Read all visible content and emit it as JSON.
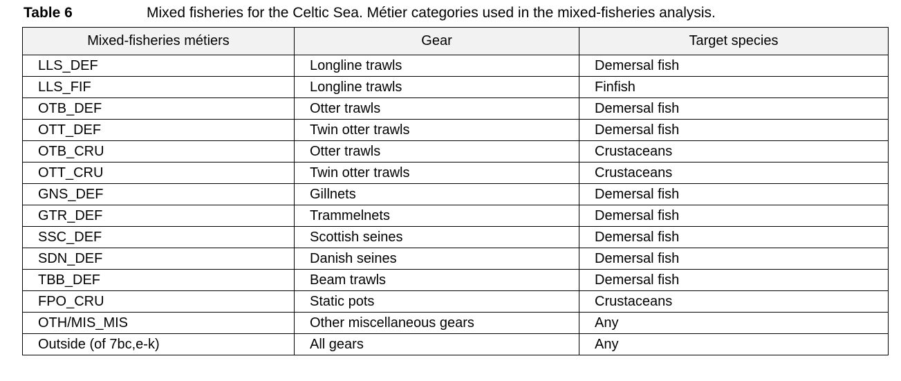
{
  "caption": {
    "label": "Table 6",
    "text": "Mixed fisheries for the Celtic Sea. Métier categories used in the mixed-fisheries analysis."
  },
  "table": {
    "headers": [
      "Mixed-fisheries métiers",
      "Gear",
      "Target species"
    ],
    "rows": [
      [
        "LLS_DEF",
        "Longline trawls",
        "Demersal fish"
      ],
      [
        "LLS_FIF",
        "Longline trawls",
        "Finfish"
      ],
      [
        "OTB_DEF",
        "Otter trawls",
        "Demersal fish"
      ],
      [
        "OTT_DEF",
        "Twin otter trawls",
        "Demersal fish"
      ],
      [
        "OTB_CRU",
        "Otter trawls",
        "Crustaceans"
      ],
      [
        "OTT_CRU",
        "Twin otter trawls",
        "Crustaceans"
      ],
      [
        "GNS_DEF",
        "Gillnets",
        "Demersal fish"
      ],
      [
        "GTR_DEF",
        "Trammelnets",
        "Demersal fish"
      ],
      [
        "SSC_DEF",
        "Scottish seines",
        "Demersal fish"
      ],
      [
        "SDN_DEF",
        "Danish seines",
        "Demersal fish"
      ],
      [
        "TBB_DEF",
        "Beam trawls",
        "Demersal fish"
      ],
      [
        "FPO_CRU",
        "Static pots",
        "Crustaceans"
      ],
      [
        "OTH/MIS_MIS",
        "Other miscellaneous gears",
        "Any"
      ],
      [
        "Outside (of 7bc,e-k)",
        "All gears",
        "Any"
      ]
    ]
  },
  "colors": {
    "header_background": "#f2f2f2",
    "border": "#000000"
  }
}
